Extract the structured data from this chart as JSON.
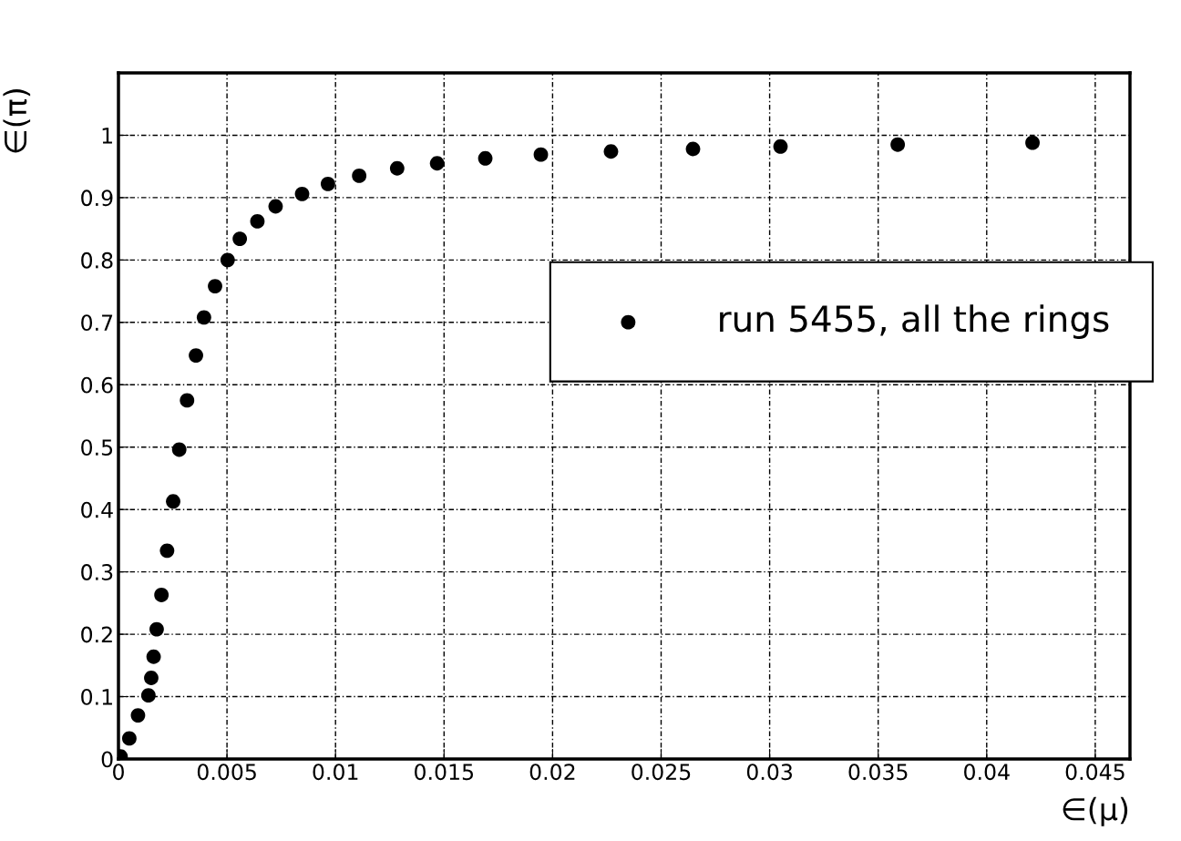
{
  "chart_data": {
    "type": "scatter",
    "xlabel": "∈(μ)",
    "ylabel": "∈(π)",
    "xlim": [
      0,
      0.0466
    ],
    "ylim": [
      0,
      1.1
    ],
    "xticks": [
      0,
      0.005,
      0.01,
      0.015,
      0.02,
      0.025,
      0.03,
      0.035,
      0.04,
      0.045
    ],
    "yticks": [
      0,
      0.1,
      0.2,
      0.3,
      0.4,
      0.5,
      0.6,
      0.7,
      0.8,
      0.9,
      1
    ],
    "grid": true,
    "legend": "top right",
    "marker": "circle",
    "series": [
      {
        "name": "run 5455, all the rings",
        "color": "#000000",
        "x": [
          0.0001,
          0.0005,
          0.0009,
          0.00138,
          0.00151,
          0.00162,
          0.00176,
          0.00198,
          0.00224,
          0.00252,
          0.0028,
          0.00316,
          0.00357,
          0.00394,
          0.00445,
          0.00503,
          0.00559,
          0.0064,
          0.00724,
          0.00846,
          0.00965,
          0.01109,
          0.01284,
          0.01468,
          0.0169,
          0.01946,
          0.02269,
          0.02647,
          0.0305,
          0.0359,
          0.04211
        ],
        "values": [
          0.004,
          0.033,
          0.07,
          0.102,
          0.13,
          0.164,
          0.208,
          0.263,
          0.334,
          0.413,
          0.496,
          0.575,
          0.647,
          0.708,
          0.758,
          0.8,
          0.834,
          0.862,
          0.886,
          0.906,
          0.922,
          0.935,
          0.947,
          0.955,
          0.963,
          0.969,
          0.974,
          0.978,
          0.982,
          0.985,
          0.988
        ]
      }
    ]
  }
}
